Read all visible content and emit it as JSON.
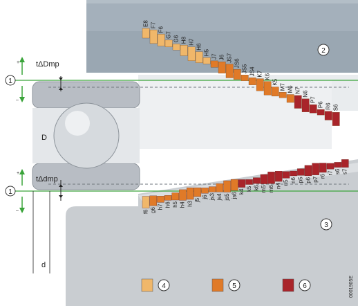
{
  "colors": {
    "light": "#f0b76a",
    "medium": "#e07a28",
    "dark": "#a9242a",
    "housing": "#9aa7b2",
    "housing_top": "#b3bec7",
    "shaft": "#c9cdd1",
    "shaft_top": "#dcdfe2",
    "bearing_ring": "#b8bdc4",
    "green": "#3aa43a"
  },
  "housing_tolerances": [
    {
      "label": "E8",
      "color": "light"
    },
    {
      "label": "F7",
      "color": "light"
    },
    {
      "label": "F6",
      "color": "light"
    },
    {
      "label": "G7",
      "color": "light"
    },
    {
      "label": "G6",
      "color": "light"
    },
    {
      "label": "H8",
      "color": "light"
    },
    {
      "label": "H7",
      "color": "light"
    },
    {
      "label": "H6",
      "color": "light"
    },
    {
      "label": "H5",
      "color": "light"
    },
    {
      "label": "J7",
      "color": "medium"
    },
    {
      "label": "J6",
      "color": "medium"
    },
    {
      "label": "JS7",
      "color": "medium"
    },
    {
      "label": "JS6",
      "color": "medium"
    },
    {
      "label": "JS5",
      "color": "medium"
    },
    {
      "label": "JS4",
      "color": "medium"
    },
    {
      "label": "K7",
      "color": "medium"
    },
    {
      "label": "K6",
      "color": "medium"
    },
    {
      "label": "K5",
      "color": "medium"
    },
    {
      "label": "M7",
      "color": "medium"
    },
    {
      "label": "M6",
      "color": "medium"
    },
    {
      "label": "N7",
      "color": "dark"
    },
    {
      "label": "N6",
      "color": "dark"
    },
    {
      "label": "P7",
      "color": "dark"
    },
    {
      "label": "P6",
      "color": "dark"
    },
    {
      "label": "R6",
      "color": "dark"
    },
    {
      "label": "S6",
      "color": "dark"
    }
  ],
  "shaft_tolerances": [
    {
      "label": "f6",
      "color": "light"
    },
    {
      "label": "g6",
      "color": "medium"
    },
    {
      "label": "h7",
      "color": "medium"
    },
    {
      "label": "h6",
      "color": "medium"
    },
    {
      "label": "h5",
      "color": "medium"
    },
    {
      "label": "h4",
      "color": "medium"
    },
    {
      "label": "h3",
      "color": "medium"
    },
    {
      "label": "j5",
      "color": "medium"
    },
    {
      "label": "j6",
      "color": "medium"
    },
    {
      "label": "js3",
      "color": "medium"
    },
    {
      "label": "js4",
      "color": "medium"
    },
    {
      "label": "js5",
      "color": "medium"
    },
    {
      "label": "js6",
      "color": "medium"
    },
    {
      "label": "k4",
      "color": "dark"
    },
    {
      "label": "k5",
      "color": "dark"
    },
    {
      "label": "k6",
      "color": "dark"
    },
    {
      "label": "m5",
      "color": "dark"
    },
    {
      "label": "m6",
      "color": "dark"
    },
    {
      "label": "n4",
      "color": "dark"
    },
    {
      "label": "n5",
      "color": "dark"
    },
    {
      "label": "n6",
      "color": "dark"
    },
    {
      "label": "p5",
      "color": "dark"
    },
    {
      "label": "p6",
      "color": "dark"
    },
    {
      "label": "p7",
      "color": "dark"
    },
    {
      "label": "r6",
      "color": "dark"
    },
    {
      "label": "r7",
      "color": "dark"
    },
    {
      "label": "s6",
      "color": "dark"
    },
    {
      "label": "s7",
      "color": "dark"
    }
  ],
  "labels": {
    "t_outer": "tΔDmp",
    "t_inner": "tΔdmp",
    "D": "D",
    "d": "d",
    "zero_marker": "1",
    "plus": "+",
    "minus": "–",
    "housing_marker": "2",
    "shaft_marker": "3",
    "figure_code": "0001905E"
  },
  "legend": [
    {
      "color": "light",
      "number": "4"
    },
    {
      "color": "medium",
      "number": "5"
    },
    {
      "color": "dark",
      "number": "6"
    }
  ]
}
